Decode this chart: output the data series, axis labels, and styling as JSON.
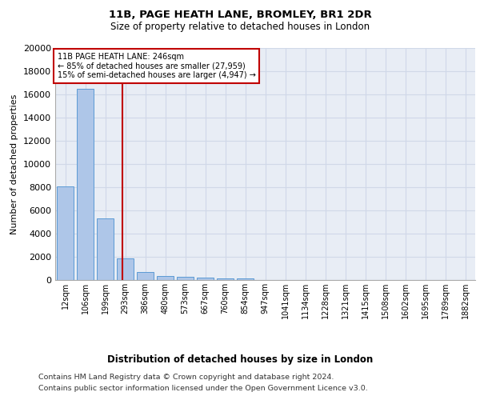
{
  "title1": "11B, PAGE HEATH LANE, BROMLEY, BR1 2DR",
  "title2": "Size of property relative to detached houses in London",
  "xlabel": "Distribution of detached houses by size in London",
  "ylabel": "Number of detached properties",
  "categories": [
    "12sqm",
    "106sqm",
    "199sqm",
    "293sqm",
    "386sqm",
    "480sqm",
    "573sqm",
    "667sqm",
    "760sqm",
    "854sqm",
    "947sqm",
    "1041sqm",
    "1134sqm",
    "1228sqm",
    "1321sqm",
    "1415sqm",
    "1508sqm",
    "1602sqm",
    "1695sqm",
    "1789sqm",
    "1882sqm"
  ],
  "values": [
    8100,
    16500,
    5300,
    1850,
    700,
    350,
    270,
    200,
    160,
    120,
    0,
    0,
    0,
    0,
    0,
    0,
    0,
    0,
    0,
    0,
    0
  ],
  "bar_color": "#aec6e8",
  "bar_edge_color": "#5b9bd5",
  "vline_x": 2.85,
  "vline_color": "#c00000",
  "annotation_line1": "11B PAGE HEATH LANE: 246sqm",
  "annotation_line2": "← 85% of detached houses are smaller (27,959)",
  "annotation_line3": "15% of semi-detached houses are larger (4,947) →",
  "annotation_box_color": "#c00000",
  "annotation_text_color": "black",
  "annotation_bg": "white",
  "ylim": [
    0,
    20000
  ],
  "yticks": [
    0,
    2000,
    4000,
    6000,
    8000,
    10000,
    12000,
    14000,
    16000,
    18000,
    20000
  ],
  "grid_color": "#d0d8e8",
  "bg_color": "#e8edf5",
  "footnote_line1": "Contains HM Land Registry data © Crown copyright and database right 2024.",
  "footnote_line2": "Contains public sector information licensed under the Open Government Licence v3.0."
}
